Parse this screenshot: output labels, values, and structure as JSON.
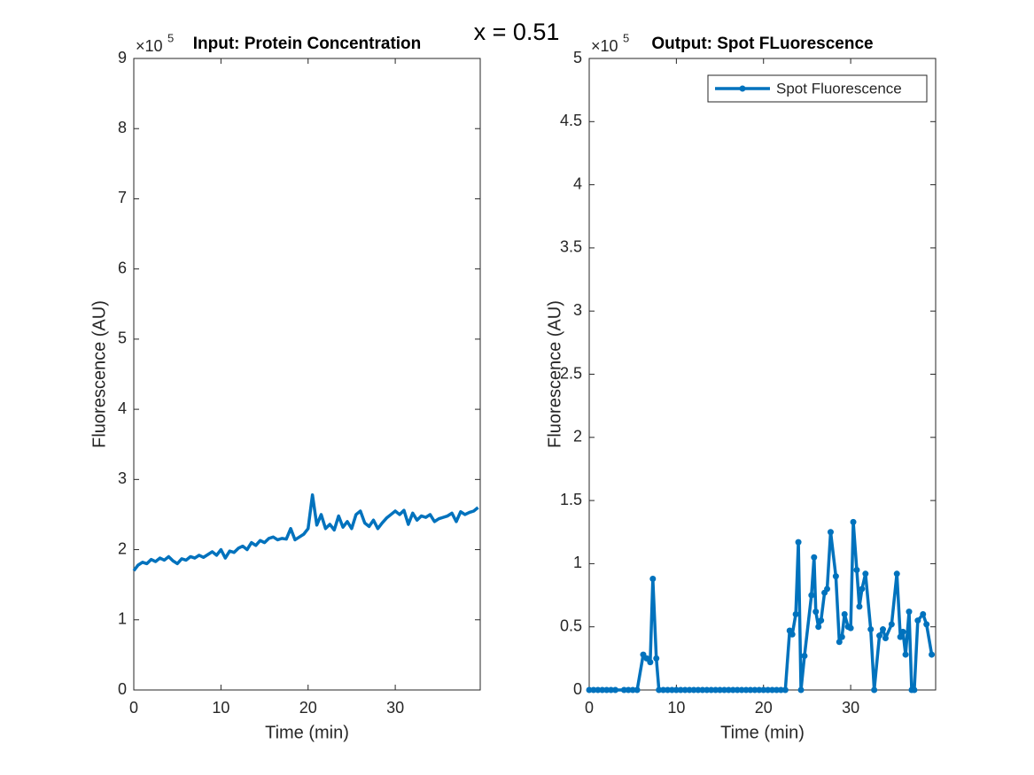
{
  "title": "x = 0.51",
  "chart_data": [
    {
      "type": "line",
      "title": "Input: Protein Concentration",
      "x_label": "Time (min)",
      "y_label": "Fluorescence (AU)",
      "y_scale_label": "×10",
      "y_scale_exponent": "5",
      "xlim": [
        0,
        39.75
      ],
      "xticks": [
        0,
        10,
        20,
        30
      ],
      "ylim": [
        0,
        9
      ],
      "yticks": [
        0,
        1,
        2,
        3,
        4,
        5,
        6,
        7,
        8,
        9
      ],
      "markers": false,
      "x": [
        0,
        0.5,
        1,
        1.5,
        2,
        2.5,
        3,
        3.5,
        4,
        4.5,
        5,
        5.5,
        6,
        6.5,
        7,
        7.5,
        8,
        8.5,
        9,
        9.5,
        10,
        10.5,
        11,
        11.5,
        12,
        12.5,
        13,
        13.5,
        14,
        14.5,
        15,
        15.5,
        16,
        16.5,
        17,
        17.5,
        18,
        18.5,
        19,
        19.5,
        20,
        20.5,
        21,
        21.5,
        22,
        22.5,
        23,
        23.5,
        24,
        24.5,
        25,
        25.5,
        26,
        26.5,
        27,
        27.5,
        28,
        28.5,
        29,
        29.5,
        30,
        30.5,
        31,
        31.5,
        32,
        32.5,
        33,
        33.5,
        34,
        34.5,
        35,
        35.5,
        36,
        36.5,
        37,
        37.5,
        38,
        38.5,
        39,
        39.5
      ],
      "series": [
        {
          "color": "#0072bd",
          "values": [
            1.7,
            1.78,
            1.82,
            1.8,
            1.86,
            1.83,
            1.88,
            1.85,
            1.9,
            1.84,
            1.8,
            1.87,
            1.85,
            1.9,
            1.88,
            1.92,
            1.89,
            1.93,
            1.97,
            1.92,
            2.0,
            1.88,
            1.98,
            1.96,
            2.02,
            2.05,
            2.0,
            2.1,
            2.06,
            2.13,
            2.1,
            2.16,
            2.18,
            2.14,
            2.16,
            2.15,
            2.3,
            2.14,
            2.18,
            2.22,
            2.3,
            2.78,
            2.35,
            2.5,
            2.3,
            2.36,
            2.28,
            2.48,
            2.32,
            2.4,
            2.3,
            2.5,
            2.55,
            2.38,
            2.33,
            2.42,
            2.3,
            2.38,
            2.45,
            2.5,
            2.55,
            2.5,
            2.56,
            2.36,
            2.52,
            2.42,
            2.48,
            2.46,
            2.5,
            2.4,
            2.44,
            2.46,
            2.48,
            2.52,
            2.4,
            2.54,
            2.5,
            2.53,
            2.55,
            2.6
          ]
        }
      ]
    },
    {
      "type": "line",
      "title": "Output: Spot FLuorescence",
      "x_label": "Time (min)",
      "y_label": "Fluorescence (AU)",
      "y_scale_label": "×10",
      "y_scale_exponent": "5",
      "xlim": [
        0,
        39.75
      ],
      "xticks": [
        0,
        10,
        20,
        30
      ],
      "ylim": [
        0,
        5
      ],
      "yticks": [
        0,
        0.5,
        1,
        1.5,
        2,
        2.5,
        3,
        3.5,
        4,
        4.5,
        5
      ],
      "markers": true,
      "legend": "northeast",
      "x": [
        0,
        0.5,
        1,
        1.5,
        2,
        2.5,
        3,
        4,
        4.5,
        5,
        5.5,
        6.2,
        6.6,
        7,
        7.3,
        7.7,
        8,
        8.5,
        9,
        9.5,
        10,
        10.5,
        11,
        11.5,
        12,
        12.5,
        13,
        13.5,
        14,
        14.5,
        15,
        15.5,
        16,
        16.5,
        17,
        17.5,
        18,
        18.5,
        19,
        19.5,
        20,
        20.5,
        21,
        21.5,
        22,
        22.5,
        23,
        23.3,
        23.7,
        24,
        24.3,
        24.7,
        25.5,
        25.8,
        26,
        26.3,
        26.6,
        27,
        27.3,
        27.7,
        28.3,
        28.7,
        29,
        29.3,
        29.7,
        30,
        30.3,
        30.7,
        31,
        31.3,
        31.7,
        32.3,
        32.7,
        33.3,
        33.7,
        34,
        34.7,
        35.3,
        35.7,
        36,
        36.3,
        36.7,
        37,
        37.3,
        37.7,
        38.3,
        38.7,
        39.3
      ],
      "series": [
        {
          "name": "Spot Fluorescence",
          "color": "#0072bd",
          "values": [
            0,
            0,
            0,
            0,
            0,
            0,
            0,
            0,
            0,
            0,
            0,
            0.28,
            0.25,
            0.22,
            0.88,
            0.25,
            0,
            0,
            0,
            0,
            0,
            0,
            0,
            0,
            0,
            0,
            0,
            0,
            0,
            0,
            0,
            0,
            0,
            0,
            0,
            0,
            0,
            0,
            0,
            0,
            0,
            0,
            0,
            0,
            0,
            0,
            0.47,
            0.44,
            0.6,
            1.17,
            0,
            0.27,
            0.75,
            1.05,
            0.62,
            0.5,
            0.55,
            0.77,
            0.8,
            1.25,
            0.9,
            0.38,
            0.42,
            0.6,
            0.5,
            0.49,
            1.33,
            0.95,
            0.66,
            0.8,
            0.92,
            0.48,
            0,
            0.43,
            0.48,
            0.41,
            0.52,
            0.92,
            0.42,
            0.46,
            0.28,
            0.62,
            0,
            0,
            0.55,
            0.6,
            0.52,
            0.28
          ]
        }
      ]
    }
  ]
}
